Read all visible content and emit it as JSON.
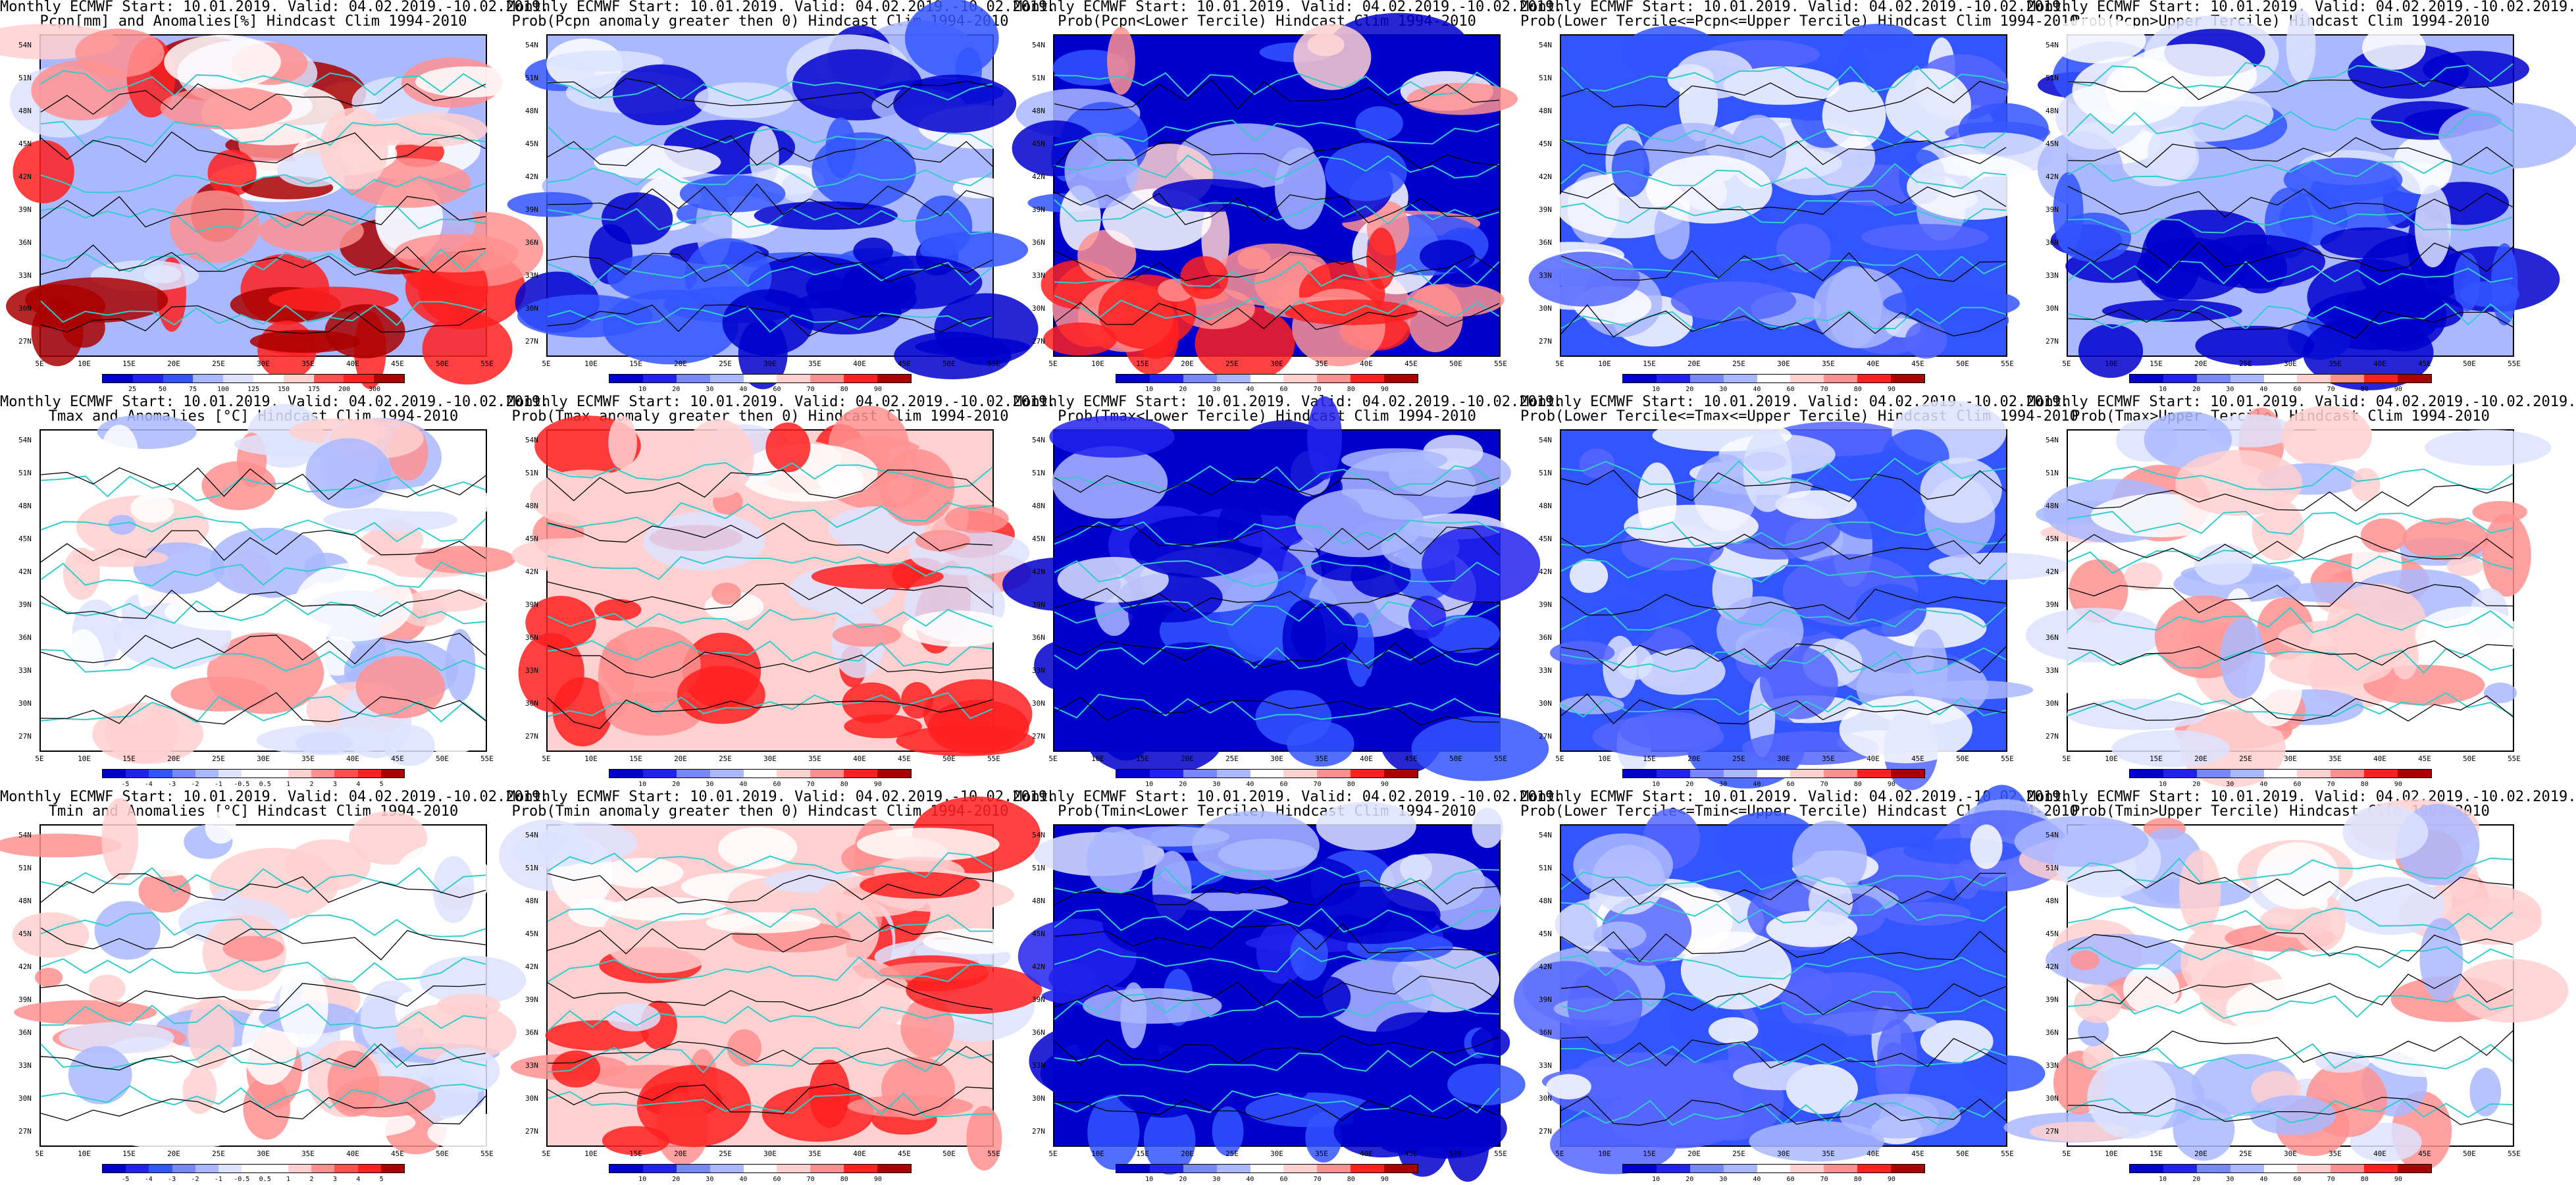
{
  "panels": [
    {
      "t1": "Monthly ECMWF Start: 10.01.2019. Valid: 04.02.2019.-10.02.2019.",
      "t2": "Pcpn[mm] and Anomalies[%] Hindcast Clim 1994-2010",
      "scheme": "anom",
      "dom": "mixed-red",
      "cb": [
        "25",
        "50",
        "75",
        "100",
        "125",
        "150",
        "175",
        "200",
        "300"
      ]
    },
    {
      "t1": "Monthly ECMWF Start: 10.01.2019. Valid: 04.02.2019.-10.02.2019.",
      "t2": "Prob(Pcpn anomaly greater then 0) Hindcast Clim 1994-2010",
      "scheme": "prob",
      "dom": "blue-south",
      "cb": [
        "10",
        "20",
        "30",
        "40",
        "60",
        "70",
        "80",
        "90"
      ]
    },
    {
      "t1": "Monthly ECMWF Start: 10.01.2019. Valid: 04.02.2019.-10.02.2019.",
      "t2": "Prob(Pcpn<Lower Tercile) Hindcast Clim 1994-2010",
      "scheme": "prob",
      "dom": "red-south",
      "cb": [
        "10",
        "20",
        "30",
        "40",
        "60",
        "70",
        "80",
        "90"
      ]
    },
    {
      "t1": "Monthly ECMWF Start: 10.01.2019. Valid: 04.02.2019.-10.02.2019.",
      "t2": "Prob(Lower Tercile<=Pcpn<=Upper Tercile) Hindcast Clim 1994-2010",
      "scheme": "prob",
      "dom": "blue",
      "cb": [
        "10",
        "20",
        "30",
        "40",
        "60",
        "70",
        "80",
        "90"
      ]
    },
    {
      "t1": "Monthly ECMWF Start: 10.01.2019. Valid: 04.02.2019.-10.02.2019.",
      "t2": "Prob(Pcpn>Upper Tercile) Hindcast Clim 1994-2010",
      "scheme": "prob",
      "dom": "blue-south",
      "cb": [
        "10",
        "20",
        "30",
        "40",
        "60",
        "70",
        "80",
        "90"
      ]
    },
    {
      "t1": "Monthly ECMWF Start: 10.01.2019. Valid: 04.02.2019.-10.02.2019.",
      "t2": "Tmax and Anomalies [°C] Hindcast Clim 1994-2010",
      "scheme": "anom",
      "dom": "red-light",
      "cb": [
        "-5",
        "-4",
        "-3",
        "-2",
        "-1",
        "-0.5",
        "0.5",
        "1",
        "2",
        "3",
        "4",
        "5"
      ]
    },
    {
      "t1": "Monthly ECMWF Start: 10.01.2019. Valid: 04.02.2019.-10.02.2019.",
      "t2": "Prob(Tmax anomaly greater then 0) Hindcast Clim 1994-2010",
      "scheme": "prob",
      "dom": "red",
      "cb": [
        "10",
        "20",
        "30",
        "40",
        "60",
        "70",
        "80",
        "90"
      ]
    },
    {
      "t1": "Monthly ECMWF Start: 10.01.2019. Valid: 04.02.2019.-10.02.2019.",
      "t2": "Prob(Tmax<Lower Tercile) Hindcast Clim 1994-2010",
      "scheme": "prob",
      "dom": "blue-strong",
      "cb": [
        "10",
        "20",
        "30",
        "40",
        "60",
        "70",
        "80",
        "90"
      ]
    },
    {
      "t1": "Monthly ECMWF Start: 10.01.2019. Valid: 04.02.2019.-10.02.2019.",
      "t2": "Prob(Lower Tercile<=Tmax<=Upper Tercile) Hindcast Clim 1994-2010",
      "scheme": "prob",
      "dom": "blue",
      "cb": [
        "10",
        "20",
        "30",
        "40",
        "60",
        "70",
        "80",
        "90"
      ]
    },
    {
      "t1": "Monthly ECMWF Start: 10.01.2019. Valid: 04.02.2019.-10.02.2019.",
      "t2": "Prob(Tmax>Upper Tercile) Hindcast Clim 1994-2010",
      "scheme": "prob",
      "dom": "white-mixed",
      "cb": [
        "10",
        "20",
        "30",
        "40",
        "60",
        "70",
        "80",
        "90"
      ]
    },
    {
      "t1": "Monthly ECMWF Start: 10.01.2019. Valid: 04.02.2019.-10.02.2019.",
      "t2": "Tmin and Anomalies [°C] Hindcast Clim 1994-2010",
      "scheme": "anom",
      "dom": "red-light",
      "cb": [
        "-5",
        "-4",
        "-3",
        "-2",
        "-1",
        "-0.5",
        "0.5",
        "1",
        "2",
        "3",
        "4",
        "5"
      ]
    },
    {
      "t1": "Monthly ECMWF Start: 10.01.2019. Valid: 04.02.2019.-10.02.2019.",
      "t2": "Prob(Tmin anomaly greater then 0) Hindcast Clim 1994-2010",
      "scheme": "prob",
      "dom": "red",
      "cb": [
        "10",
        "20",
        "30",
        "40",
        "60",
        "70",
        "80",
        "90"
      ]
    },
    {
      "t1": "Monthly ECMWF Start: 10.01.2019. Valid: 04.02.2019.-10.02.2019.",
      "t2": "Prob(Tmin<Lower Tercile) Hindcast Clim 1994-2010",
      "scheme": "prob",
      "dom": "blue-strong",
      "cb": [
        "10",
        "20",
        "30",
        "40",
        "60",
        "70",
        "80",
        "90"
      ]
    },
    {
      "t1": "Monthly ECMWF Start: 10.01.2019. Valid: 04.02.2019.-10.02.2019.",
      "t2": "Prob(Lower Tercile<=Tmin<=Upper Tercile) Hindcast Clim 1994-2010",
      "scheme": "prob",
      "dom": "blue",
      "cb": [
        "10",
        "20",
        "30",
        "40",
        "60",
        "70",
        "80",
        "90"
      ]
    },
    {
      "t1": "Monthly ECMWF Start: 10.01.2019. Valid: 04.02.2019.-10.02.2019.",
      "t2": "Prob(Tmin>Upper Tercile) Hindcast Clim 1994-2010",
      "scheme": "prob",
      "dom": "white-mixed",
      "cb": [
        "10",
        "20",
        "30",
        "40",
        "60",
        "70",
        "80",
        "90"
      ]
    }
  ],
  "lat_labels": [
    "54N",
    "51N",
    "48N",
    "45N",
    "42N",
    "39N",
    "36N",
    "33N",
    "30N",
    "27N"
  ],
  "lon_labels": [
    "5E",
    "10E",
    "15E",
    "20E",
    "25E",
    "30E",
    "35E",
    "40E",
    "45E",
    "50E",
    "55E"
  ],
  "colors": {
    "coast": "#33cccc",
    "deep_blue": "#0000cc",
    "blue": "#3355ff",
    "light_blue": "#aab8ff",
    "pale_blue": "#dde3ff",
    "white": "#ffffff",
    "pale_red": "#ffd0d0",
    "light_red": "#ff9090",
    "red": "#ff2020",
    "dark_red": "#aa0000"
  }
}
